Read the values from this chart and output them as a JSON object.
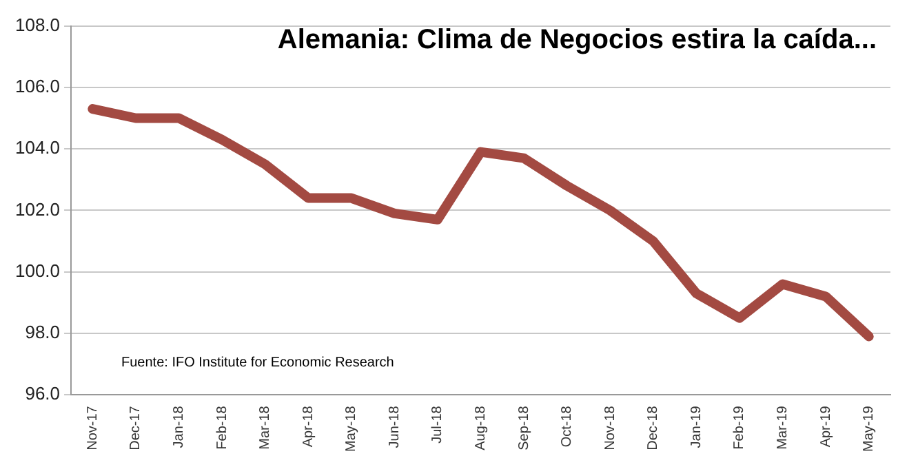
{
  "chart_data": {
    "type": "line",
    "title": "Alemania: Clima de Negocios estira la caída...",
    "annotations": [
      "Fuente: IFO Institute for Economic Research"
    ],
    "categories": [
      "Nov-17",
      "Dec-17",
      "Jan-18",
      "Feb-18",
      "Mar-18",
      "Apr-18",
      "May-18",
      "Jun-18",
      "Jul-18",
      "Aug-18",
      "Sep-18",
      "Oct-18",
      "Nov-18",
      "Dec-18",
      "Jan-19",
      "Feb-19",
      "Mar-19",
      "Apr-19",
      "May-19"
    ],
    "series": [
      {
        "color": "#a34a42",
        "values": [
          105.3,
          105.0,
          105.0,
          104.3,
          103.5,
          102.4,
          102.4,
          101.9,
          101.7,
          103.9,
          103.7,
          102.8,
          102.0,
          101.0,
          99.3,
          98.5,
          99.6,
          99.2,
          97.9
        ]
      }
    ],
    "ylim": [
      96,
      108
    ],
    "yticks": [
      {
        "value": 96,
        "label": "96.0"
      },
      {
        "value": 98,
        "label": "98.0"
      },
      {
        "value": 100,
        "label": "100.0"
      },
      {
        "value": 102,
        "label": "102.0"
      },
      {
        "value": 104,
        "label": "104.0"
      },
      {
        "value": 106,
        "label": "106.0"
      },
      {
        "value": 108,
        "label": "108.0"
      }
    ],
    "grid": "y",
    "marker": "none",
    "line_style": "solid",
    "legend": false
  }
}
